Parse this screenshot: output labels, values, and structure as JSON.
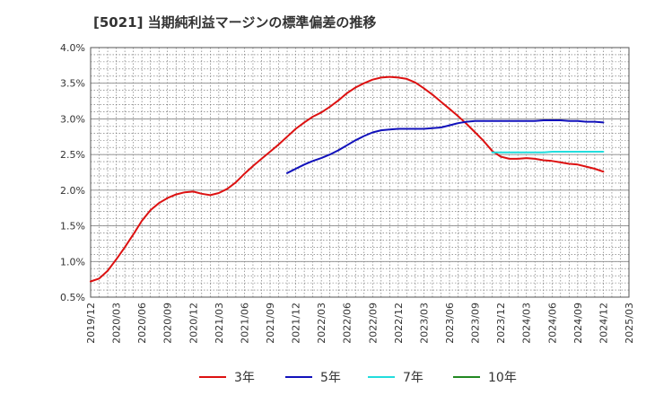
{
  "title": "[5021]  当期純利益マージンの標準偏差の推移",
  "chart_data": {
    "type": "line",
    "title": "[5021]  当期純利益マージンの標準偏差の推移",
    "xlabel": "",
    "ylabel": "",
    "ylim": [
      0.5,
      4.0
    ],
    "xlim": [
      "2019/12",
      "2025/03"
    ],
    "grid": true,
    "legend_position": "bottom",
    "y_ticks": [
      "0.5%",
      "1.0%",
      "1.5%",
      "2.0%",
      "2.5%",
      "3.0%",
      "3.5%",
      "4.0%"
    ],
    "x_ticks": [
      "2019/12",
      "2020/03",
      "2020/06",
      "2020/09",
      "2020/12",
      "2021/03",
      "2021/06",
      "2021/09",
      "2021/12",
      "2022/03",
      "2022/06",
      "2022/09",
      "2022/12",
      "2023/03",
      "2023/06",
      "2023/09",
      "2023/12",
      "2024/03",
      "2024/06",
      "2024/09",
      "2024/12",
      "2025/03"
    ],
    "series": [
      {
        "name": "3年",
        "color": "#dd1111",
        "x": [
          "2019/12",
          "2020/01",
          "2020/02",
          "2020/03",
          "2020/04",
          "2020/05",
          "2020/06",
          "2020/07",
          "2020/08",
          "2020/09",
          "2020/10",
          "2020/11",
          "2020/12",
          "2021/01",
          "2021/02",
          "2021/03",
          "2021/04",
          "2021/05",
          "2021/06",
          "2021/07",
          "2021/08",
          "2021/09",
          "2021/10",
          "2021/11",
          "2021/12",
          "2022/01",
          "2022/02",
          "2022/03",
          "2022/04",
          "2022/05",
          "2022/06",
          "2022/07",
          "2022/08",
          "2022/09",
          "2022/10",
          "2022/11",
          "2022/12",
          "2023/01",
          "2023/02",
          "2023/03",
          "2023/04",
          "2023/05",
          "2023/06",
          "2023/07",
          "2023/08",
          "2023/09",
          "2023/10",
          "2023/11",
          "2023/12",
          "2024/01",
          "2024/02",
          "2024/03",
          "2024/04",
          "2024/05",
          "2024/06",
          "2024/07",
          "2024/08",
          "2024/09",
          "2024/10",
          "2024/11",
          "2024/12"
        ],
        "values": [
          0.72,
          0.76,
          0.87,
          1.03,
          1.2,
          1.38,
          1.57,
          1.72,
          1.82,
          1.89,
          1.94,
          1.97,
          1.98,
          1.95,
          1.93,
          1.96,
          2.02,
          2.11,
          2.23,
          2.34,
          2.44,
          2.54,
          2.64,
          2.75,
          2.86,
          2.95,
          3.03,
          3.09,
          3.17,
          3.26,
          3.36,
          3.44,
          3.5,
          3.55,
          3.58,
          3.59,
          3.58,
          3.56,
          3.51,
          3.43,
          3.34,
          3.24,
          3.14,
          3.04,
          2.93,
          2.81,
          2.69,
          2.55,
          2.47,
          2.44,
          2.44,
          2.45,
          2.44,
          2.42,
          2.41,
          2.39,
          2.37,
          2.36,
          2.33,
          2.3,
          2.26
        ]
      },
      {
        "name": "5年",
        "color": "#1111bb",
        "x": [
          "2021/11",
          "2021/12",
          "2022/01",
          "2022/02",
          "2022/03",
          "2022/04",
          "2022/05",
          "2022/06",
          "2022/07",
          "2022/08",
          "2022/09",
          "2022/10",
          "2022/11",
          "2022/12",
          "2023/01",
          "2023/02",
          "2023/03",
          "2023/04",
          "2023/05",
          "2023/06",
          "2023/07",
          "2023/08",
          "2023/09",
          "2023/10",
          "2023/11",
          "2023/12",
          "2024/01",
          "2024/02",
          "2024/03",
          "2024/04",
          "2024/05",
          "2024/06",
          "2024/07",
          "2024/08",
          "2024/09",
          "2024/10",
          "2024/11",
          "2024/12"
        ],
        "values": [
          2.24,
          2.3,
          2.36,
          2.41,
          2.45,
          2.5,
          2.56,
          2.63,
          2.7,
          2.76,
          2.81,
          2.84,
          2.85,
          2.86,
          2.86,
          2.86,
          2.86,
          2.87,
          2.88,
          2.91,
          2.94,
          2.96,
          2.97,
          2.97,
          2.97,
          2.97,
          2.97,
          2.97,
          2.97,
          2.97,
          2.98,
          2.98,
          2.98,
          2.97,
          2.97,
          2.96,
          2.96,
          2.95
        ]
      },
      {
        "name": "7年",
        "color": "#22dddd",
        "x": [
          "2023/11",
          "2023/12",
          "2024/01",
          "2024/02",
          "2024/03",
          "2024/04",
          "2024/05",
          "2024/06",
          "2024/07",
          "2024/08",
          "2024/09",
          "2024/10",
          "2024/11",
          "2024/12"
        ],
        "values": [
          2.53,
          2.53,
          2.53,
          2.53,
          2.53,
          2.53,
          2.53,
          2.54,
          2.54,
          2.54,
          2.54,
          2.54,
          2.54,
          2.54
        ]
      },
      {
        "name": "10年",
        "color": "#228822",
        "x": [],
        "values": []
      }
    ]
  }
}
